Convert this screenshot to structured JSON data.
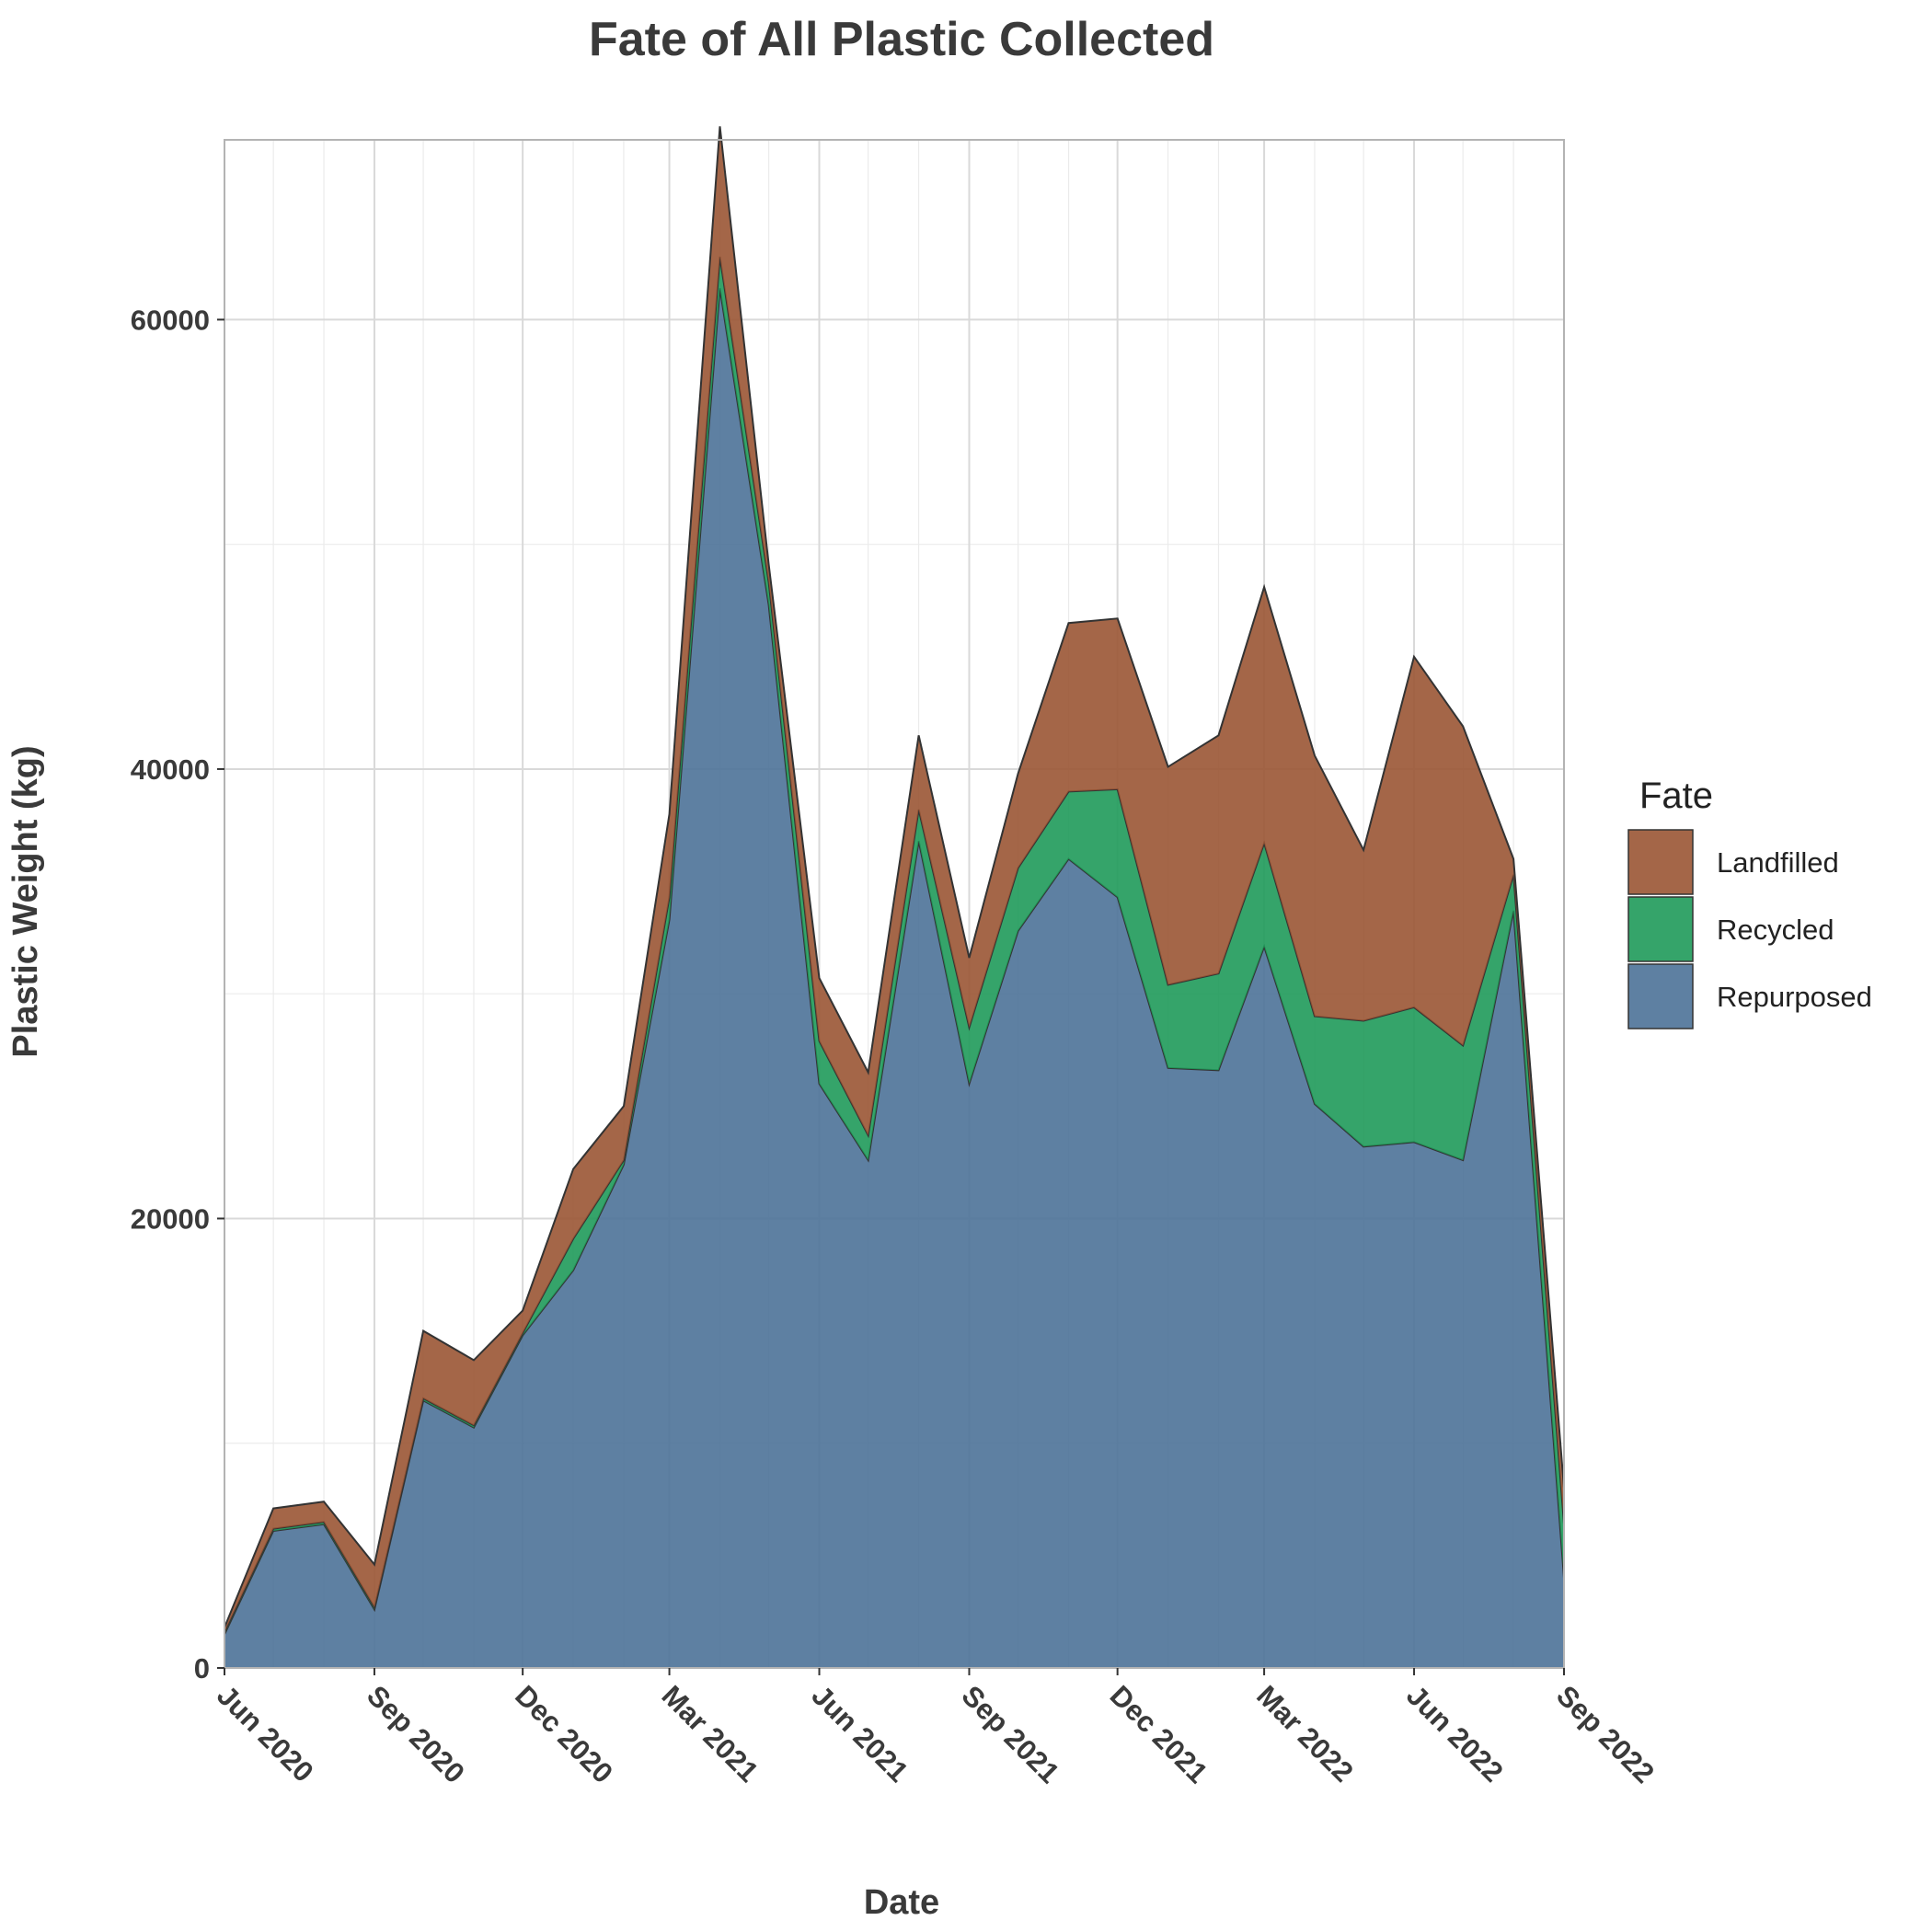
{
  "chart_data": {
    "type": "area",
    "stacked": true,
    "title": "Fate of All Plastic Collected",
    "xlabel": "Date",
    "ylabel": "Plastic Weight (kg)",
    "ylim": [
      0,
      68000
    ],
    "xlim": [
      "2020-06-01",
      "2022-09-01"
    ],
    "grid": true,
    "legend": {
      "title": "Fate",
      "placement": "right"
    },
    "x_ticks": [
      {
        "date": "2020-06-01",
        "label": "Jun 2020"
      },
      {
        "date": "2020-09-01",
        "label": "Sep 2020"
      },
      {
        "date": "2020-12-01",
        "label": "Dec 2020"
      },
      {
        "date": "2021-03-01",
        "label": "Mar 2021"
      },
      {
        "date": "2021-06-01",
        "label": "Jun 2021"
      },
      {
        "date": "2021-09-01",
        "label": "Sep 2021"
      },
      {
        "date": "2021-12-01",
        "label": "Dec 2021"
      },
      {
        "date": "2022-03-01",
        "label": "Mar 2022"
      },
      {
        "date": "2022-06-01",
        "label": "Jun 2022"
      },
      {
        "date": "2022-09-01",
        "label": "Sep 2022"
      }
    ],
    "y_ticks": [
      {
        "value": 0,
        "label": "0"
      },
      {
        "value": 20000,
        "label": "20000"
      },
      {
        "value": 40000,
        "label": "40000"
      },
      {
        "value": 60000,
        "label": "60000"
      }
    ],
    "x": [
      "2020-06-01",
      "2020-07-01",
      "2020-08-01",
      "2020-09-01",
      "2020-10-01",
      "2020-11-01",
      "2020-12-01",
      "2021-01-01",
      "2021-02-01",
      "2021-03-01",
      "2021-04-01",
      "2021-05-01",
      "2021-06-01",
      "2021-07-01",
      "2021-08-01",
      "2021-09-01",
      "2021-10-01",
      "2021-11-01",
      "2021-12-01",
      "2022-01-01",
      "2022-02-01",
      "2022-03-01",
      "2022-04-01",
      "2022-05-01",
      "2022-06-01",
      "2022-07-01",
      "2022-08-01",
      "2022-09-01"
    ],
    "series": [
      {
        "name": "Repurposed",
        "color": "#4d7298",
        "values": [
          1500,
          6100,
          6400,
          2600,
          11900,
          10700,
          14800,
          17700,
          22400,
          33300,
          61400,
          47300,
          26000,
          22600,
          36800,
          26000,
          32800,
          36000,
          34300,
          26700,
          26600,
          32100,
          25100,
          23200,
          23400,
          22600,
          33700,
          4000
        ]
      },
      {
        "name": "Recycled",
        "color": "#1f9a5a",
        "values": [
          100,
          100,
          100,
          100,
          100,
          100,
          100,
          1400,
          200,
          1000,
          1400,
          1000,
          1900,
          1100,
          1400,
          2500,
          2800,
          3000,
          4800,
          3700,
          4300,
          4600,
          3900,
          5600,
          6000,
          5100,
          1600,
          2400
        ]
      },
      {
        "name": "Landfilled",
        "color": "#9a5534",
        "values": [
          200,
          900,
          900,
          1900,
          3000,
          2900,
          1000,
          3100,
          2400,
          3700,
          5800,
          800,
          2800,
          2800,
          3300,
          3100,
          4200,
          7500,
          7600,
          9700,
          10600,
          11400,
          11600,
          7600,
          15600,
          14200,
          700,
          1600
        ]
      }
    ]
  }
}
